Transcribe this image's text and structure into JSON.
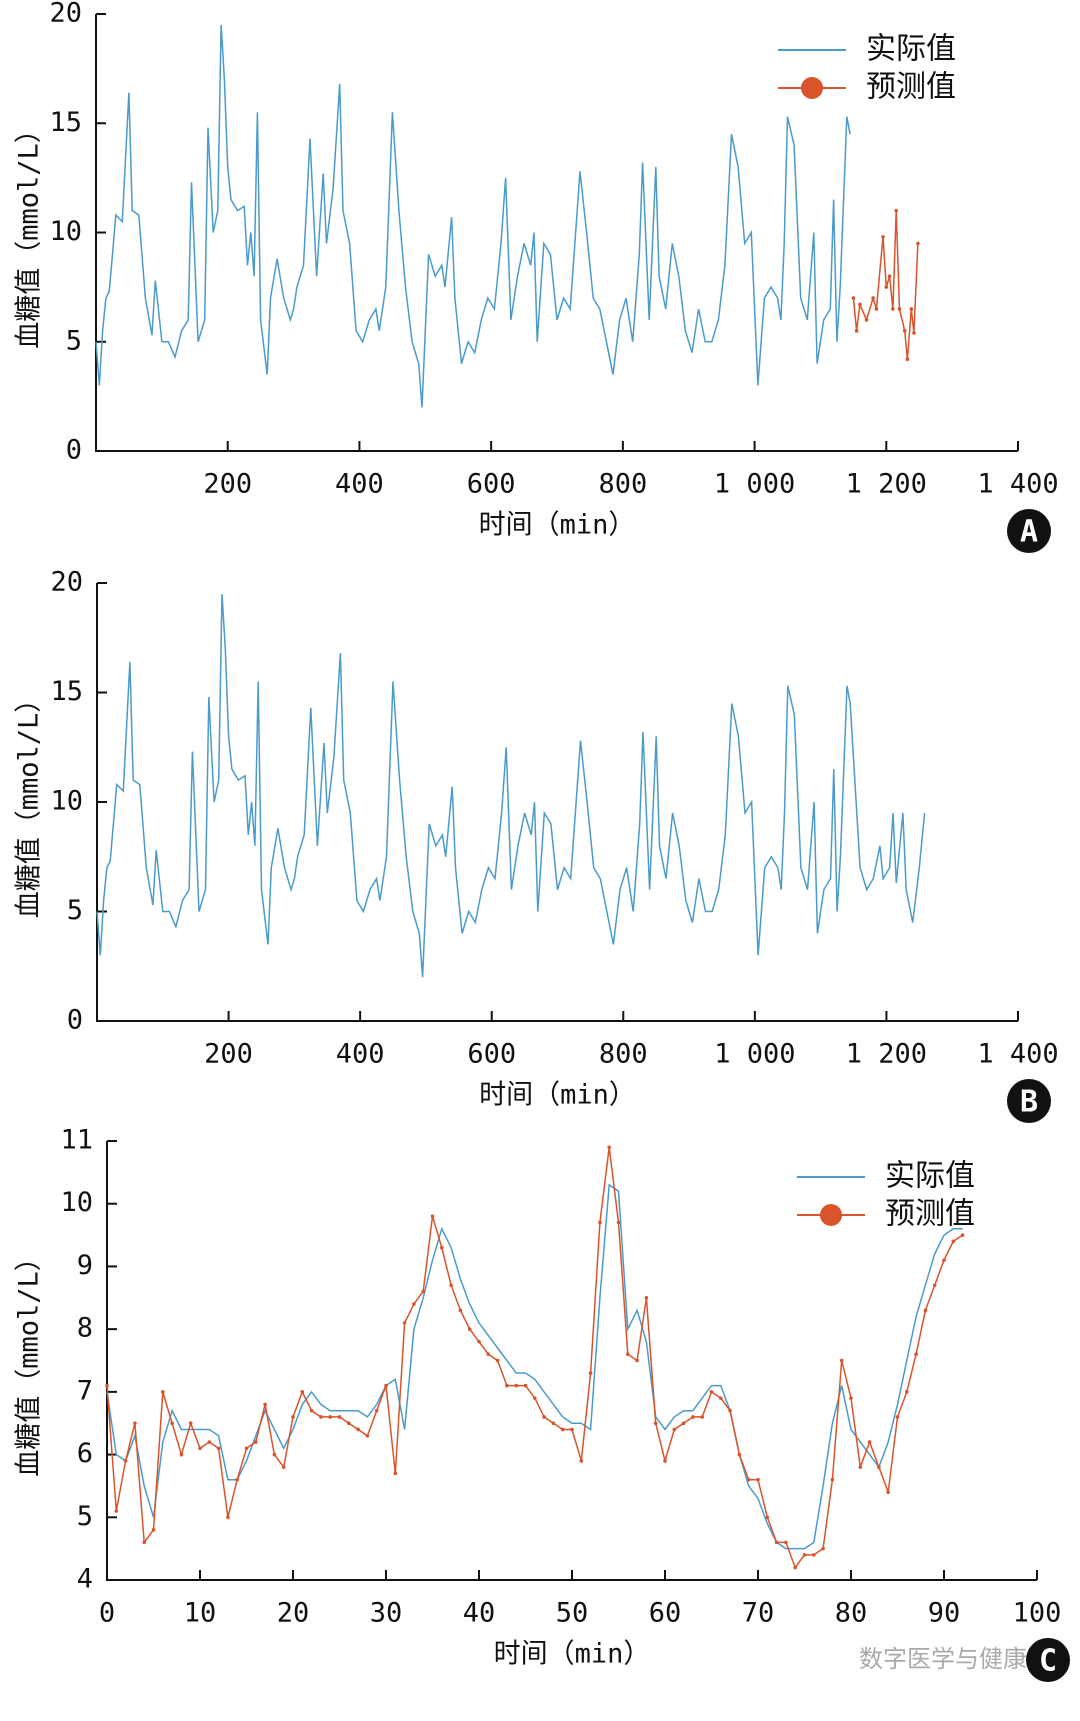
{
  "chart_data": [
    {
      "type": "line",
      "xlabel": "时间（min）",
      "ylabel": "血糖值（mmol/L）",
      "panel": "A",
      "legend": "upper right",
      "xlim": [
        0,
        1400
      ],
      "xticks": [
        200,
        400,
        600,
        800,
        {
          "value": 1000,
          "label": "1 000"
        },
        {
          "value": 1200,
          "label": "1 200"
        },
        {
          "value": 1400,
          "label": "1 400"
        }
      ],
      "ylim": [
        0,
        20
      ],
      "yticks": [
        0,
        5,
        10,
        15,
        20
      ],
      "series": [
        {
          "name": "实际值",
          "color": "#4a9bcc",
          "marker": false,
          "x": [
            0,
            5,
            10,
            15,
            20,
            25,
            30,
            40,
            50,
            55,
            65,
            75,
            85,
            90,
            100,
            110,
            120,
            130,
            140,
            145,
            155,
            165,
            170,
            178,
            185,
            190,
            195,
            200,
            205,
            215,
            225,
            230,
            235,
            240,
            245,
            250,
            260,
            265,
            275,
            285,
            295,
            300,
            305,
            315,
            325,
            335,
            345,
            350,
            360,
            370,
            375,
            385,
            395,
            405,
            415,
            425,
            430,
            440,
            450,
            460,
            470,
            480,
            490,
            495,
            505,
            515,
            525,
            530,
            540,
            545,
            555,
            565,
            575,
            585,
            595,
            605,
            615,
            622,
            630,
            640,
            650,
            660,
            665,
            670,
            680,
            690,
            700,
            710,
            720,
            735,
            745,
            755,
            765,
            775,
            785,
            795,
            805,
            815,
            825,
            830,
            840,
            850,
            855,
            865,
            875,
            885,
            895,
            905,
            915,
            925,
            935,
            945,
            955,
            965,
            975,
            985,
            995,
            1005,
            1015,
            1025,
            1035,
            1040,
            1045,
            1050,
            1060,
            1070,
            1080,
            1090,
            1095,
            1105,
            1115,
            1120,
            1125,
            1130,
            1140,
            1145
          ],
          "values": [
            5,
            3,
            5.5,
            7,
            7.3,
            9,
            10.8,
            10.5,
            16.4,
            11,
            10.8,
            7,
            5.3,
            7.8,
            5,
            5,
            4.3,
            5.5,
            6,
            12.3,
            5,
            6,
            14.8,
            10,
            11,
            19.5,
            17,
            13,
            11.5,
            11,
            11.2,
            8.5,
            10,
            8,
            15.5,
            6,
            3.5,
            7,
            8.8,
            7,
            6,
            6.5,
            7.5,
            8.5,
            14.3,
            8,
            12.7,
            9.5,
            12,
            16.8,
            11,
            9.5,
            5.5,
            5,
            6,
            6.5,
            5.5,
            7.5,
            15.5,
            11,
            7.5,
            5,
            4,
            2,
            9,
            8,
            8.5,
            7.5,
            10.7,
            7,
            4,
            5,
            4.5,
            6,
            7,
            6.5,
            9.5,
            12.5,
            6,
            8,
            9.5,
            8.5,
            10,
            5,
            9.5,
            9,
            6,
            7,
            6.5,
            12.8,
            10,
            7,
            6.5,
            5,
            3.5,
            6,
            7,
            5,
            9,
            13.2,
            6,
            13,
            8,
            6.5,
            9.5,
            8,
            5.5,
            4.5,
            6.5,
            5,
            5,
            6,
            8.5,
            14.5,
            13,
            9.5,
            10,
            3,
            7,
            7.5,
            7,
            6,
            9.5,
            15.3,
            14,
            7,
            6,
            10,
            4,
            6,
            6.5,
            11.5,
            5,
            7.5,
            15.3,
            14.5
          ]
        },
        {
          "name": "预测值",
          "color": "#d9532b",
          "marker": true,
          "x": [
            1150,
            1155,
            1160,
            1170,
            1180,
            1185,
            1195,
            1200,
            1205,
            1210,
            1215,
            1220,
            1228,
            1232,
            1238,
            1242,
            1248
          ],
          "values": [
            7,
            5.5,
            6.7,
            6,
            7,
            6.5,
            9.8,
            7.5,
            8,
            6.5,
            11,
            6.5,
            5.5,
            4.2,
            6.5,
            5.4,
            9.5
          ]
        }
      ]
    },
    {
      "type": "line",
      "xlabel": "时间（min）",
      "ylabel": "血糖值（mmol/L）",
      "panel": "B",
      "xlim": [
        0,
        1400
      ],
      "xticks": [
        200,
        400,
        600,
        800,
        {
          "value": 1000,
          "label": "1 000"
        },
        {
          "value": 1200,
          "label": "1 200"
        },
        {
          "value": 1400,
          "label": "1 400"
        }
      ],
      "ylim": [
        0,
        20
      ],
      "yticks": [
        0,
        5,
        10,
        15,
        20
      ],
      "series": [
        {
          "color": "#4a9bcc",
          "marker": false,
          "x": [
            0,
            5,
            10,
            15,
            20,
            25,
            30,
            40,
            50,
            55,
            65,
            75,
            85,
            90,
            100,
            110,
            120,
            130,
            140,
            145,
            155,
            165,
            170,
            178,
            185,
            190,
            195,
            200,
            205,
            215,
            225,
            230,
            235,
            240,
            245,
            250,
            260,
            265,
            275,
            285,
            295,
            300,
            305,
            315,
            325,
            335,
            345,
            350,
            360,
            370,
            375,
            385,
            395,
            405,
            415,
            425,
            430,
            440,
            450,
            460,
            470,
            480,
            490,
            495,
            505,
            515,
            525,
            530,
            540,
            545,
            555,
            565,
            575,
            585,
            595,
            605,
            615,
            622,
            630,
            640,
            650,
            660,
            665,
            670,
            680,
            690,
            700,
            710,
            720,
            735,
            745,
            755,
            765,
            775,
            785,
            795,
            805,
            815,
            825,
            830,
            840,
            850,
            855,
            865,
            875,
            885,
            895,
            905,
            915,
            925,
            935,
            945,
            955,
            965,
            975,
            985,
            995,
            1005,
            1015,
            1025,
            1035,
            1040,
            1045,
            1050,
            1060,
            1070,
            1080,
            1090,
            1095,
            1105,
            1115,
            1120,
            1125,
            1130,
            1140,
            1145,
            1150,
            1160,
            1170,
            1180,
            1190,
            1195,
            1205,
            1210,
            1215,
            1225,
            1230,
            1240,
            1250,
            1258
          ],
          "values": [
            5,
            3,
            5.5,
            7,
            7.3,
            9,
            10.8,
            10.5,
            16.4,
            11,
            10.8,
            7,
            5.3,
            7.8,
            5,
            5,
            4.3,
            5.5,
            6,
            12.3,
            5,
            6,
            14.8,
            10,
            11,
            19.5,
            17,
            13,
            11.5,
            11,
            11.2,
            8.5,
            10,
            8,
            15.5,
            6,
            3.5,
            7,
            8.8,
            7,
            6,
            6.5,
            7.5,
            8.5,
            14.3,
            8,
            12.7,
            9.5,
            12,
            16.8,
            11,
            9.5,
            5.5,
            5,
            6,
            6.5,
            5.5,
            7.5,
            15.5,
            11,
            7.5,
            5,
            4,
            2,
            9,
            8,
            8.5,
            7.5,
            10.7,
            7,
            4,
            5,
            4.5,
            6,
            7,
            6.5,
            9.5,
            12.5,
            6,
            8,
            9.5,
            8.5,
            10,
            5,
            9.5,
            9,
            6,
            7,
            6.5,
            12.8,
            10,
            7,
            6.5,
            5,
            3.5,
            6,
            7,
            5,
            9,
            13.2,
            6,
            13,
            8,
            6.5,
            9.5,
            8,
            5.5,
            4.5,
            6.5,
            5,
            5,
            6,
            8.5,
            14.5,
            13,
            9.5,
            10,
            3,
            7,
            7.5,
            7,
            6,
            9.5,
            15.3,
            14,
            7,
            6,
            10,
            4,
            6,
            6.5,
            11.5,
            5,
            7.5,
            15.3,
            14.5,
            12,
            7,
            6,
            6.5,
            8,
            6.5,
            7,
            9.5,
            6.3,
            9.5,
            6,
            4.5,
            7,
            9.5
          ]
        }
      ]
    },
    {
      "type": "line",
      "xlabel": "时间（min）",
      "ylabel": "血糖值（mmol/L）",
      "panel": "C",
      "legend": "upper right",
      "watermark": "数字医学与健康",
      "xlim": [
        0,
        100
      ],
      "xticks": [
        0,
        10,
        20,
        30,
        40,
        50,
        60,
        70,
        80,
        90,
        100
      ],
      "ylim": [
        4,
        11
      ],
      "yticks": [
        4,
        5,
        6,
        7,
        8,
        9,
        10,
        11
      ],
      "series": [
        {
          "name": "实际值",
          "color": "#4a9bcc",
          "marker": false,
          "x": [
            0,
            1,
            2,
            3,
            4,
            5,
            6,
            7,
            8,
            9,
            10,
            11,
            12,
            13,
            14,
            15,
            16,
            17,
            18,
            19,
            20,
            21,
            22,
            23,
            24,
            25,
            26,
            27,
            28,
            29,
            30,
            31,
            32,
            33,
            34,
            35,
            36,
            37,
            38,
            39,
            40,
            41,
            42,
            43,
            44,
            45,
            46,
            47,
            48,
            49,
            50,
            51,
            52,
            53,
            54,
            55,
            56,
            57,
            58,
            59,
            60,
            61,
            62,
            63,
            64,
            65,
            66,
            67,
            68,
            69,
            70,
            71,
            72,
            73,
            74,
            75,
            76,
            77,
            78,
            79,
            80,
            81,
            82,
            83,
            84,
            85,
            86,
            87,
            88,
            89,
            90,
            91,
            92
          ],
          "values": [
            7,
            6,
            5.9,
            6.3,
            5.5,
            5,
            6.2,
            6.7,
            6.4,
            6.4,
            6.4,
            6.4,
            6.3,
            5.6,
            5.6,
            5.9,
            6.3,
            6.7,
            6.4,
            6.1,
            6.4,
            6.8,
            7,
            6.8,
            6.7,
            6.7,
            6.7,
            6.7,
            6.6,
            6.8,
            7.1,
            7.2,
            6.4,
            8,
            8.5,
            9.1,
            9.6,
            9.3,
            8.8,
            8.4,
            8.1,
            7.9,
            7.7,
            7.5,
            7.3,
            7.3,
            7.2,
            7,
            6.8,
            6.6,
            6.5,
            6.5,
            6.4,
            8.5,
            10.3,
            10.2,
            8,
            8.3,
            7.8,
            6.6,
            6.4,
            6.6,
            6.7,
            6.7,
            6.9,
            7.1,
            7.1,
            6.7,
            6,
            5.5,
            5.3,
            4.9,
            4.6,
            4.5,
            4.5,
            4.5,
            4.6,
            5.5,
            6.5,
            7.1,
            6.4,
            6.2,
            6,
            5.8,
            6.2,
            6.8,
            7.5,
            8.2,
            8.7,
            9.2,
            9.5,
            9.6,
            9.6
          ]
        },
        {
          "name": "预测值",
          "color": "#d9532b",
          "marker": true,
          "x": [
            0,
            1,
            2,
            3,
            4,
            5,
            6,
            7,
            8,
            9,
            10,
            11,
            12,
            13,
            14,
            15,
            16,
            17,
            18,
            19,
            20,
            21,
            22,
            23,
            24,
            25,
            26,
            27,
            28,
            29,
            30,
            31,
            32,
            33,
            34,
            35,
            36,
            37,
            38,
            39,
            40,
            41,
            42,
            43,
            44,
            45,
            46,
            47,
            48,
            49,
            50,
            51,
            52,
            53,
            54,
            55,
            56,
            57,
            58,
            59,
            60,
            61,
            62,
            63,
            64,
            65,
            66,
            67,
            68,
            69,
            70,
            71,
            72,
            73,
            74,
            75,
            76,
            77,
            78,
            79,
            80,
            81,
            82,
            83,
            84,
            85,
            86,
            87,
            88,
            89,
            90,
            91,
            92
          ],
          "values": [
            7.1,
            5.1,
            5.9,
            6.5,
            4.6,
            4.8,
            7,
            6.5,
            6,
            6.5,
            6.1,
            6.2,
            6.1,
            5,
            5.6,
            6.1,
            6.2,
            6.8,
            6,
            5.8,
            6.6,
            7,
            6.7,
            6.6,
            6.6,
            6.6,
            6.5,
            6.4,
            6.3,
            6.7,
            7.1,
            5.7,
            8.1,
            8.4,
            8.6,
            9.8,
            9.3,
            8.7,
            8.3,
            8,
            7.8,
            7.6,
            7.5,
            7.1,
            7.1,
            7.1,
            6.9,
            6.6,
            6.5,
            6.4,
            6.4,
            5.9,
            7.3,
            9.7,
            10.9,
            9.7,
            7.6,
            7.5,
            8.5,
            6.5,
            5.9,
            6.4,
            6.5,
            6.6,
            6.6,
            7,
            6.9,
            6.7,
            6,
            5.6,
            5.6,
            5,
            4.6,
            4.6,
            4.2,
            4.4,
            4.4,
            4.5,
            5.6,
            7.5,
            6.9,
            5.8,
            6.2,
            5.8,
            5.4,
            6.6,
            7,
            7.6,
            8.3,
            8.7,
            9.1,
            9.4,
            9.5
          ]
        }
      ]
    }
  ]
}
